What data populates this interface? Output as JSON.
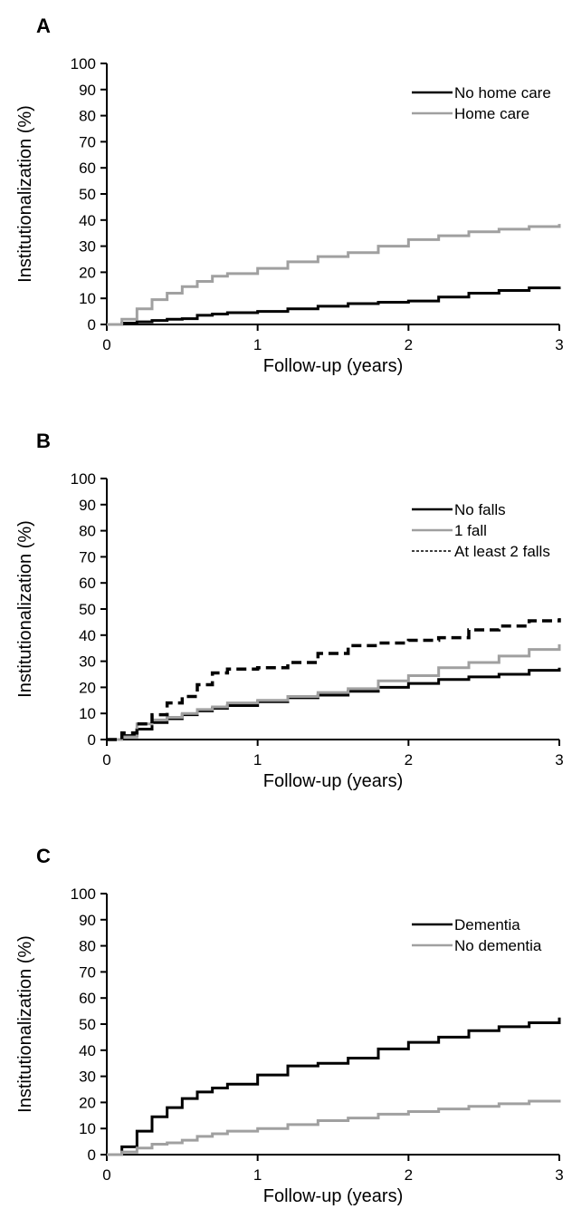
{
  "chart_data": [
    {
      "type": "line",
      "panel_label": "A",
      "xlabel": "Follow-up (years)",
      "ylabel": "Institutionalization (%)",
      "xlim": [
        0,
        3
      ],
      "ylim": [
        0,
        100
      ],
      "x_ticks": [
        0,
        1,
        2,
        3
      ],
      "y_ticks": [
        0,
        10,
        20,
        30,
        40,
        50,
        60,
        70,
        80,
        90,
        100
      ],
      "legend_position": "top-right",
      "series": [
        {
          "name": "No home care",
          "color": "#000000",
          "dash": "solid",
          "x": [
            0,
            0.1,
            0.2,
            0.3,
            0.4,
            0.5,
            0.6,
            0.7,
            0.8,
            1.0,
            1.2,
            1.4,
            1.6,
            1.8,
            2.0,
            2.2,
            2.4,
            2.6,
            2.8,
            3.0
          ],
          "y": [
            0,
            0.5,
            1,
            1.5,
            2,
            2.2,
            3.5,
            4,
            4.5,
            5,
            6,
            7,
            8,
            8.5,
            9,
            10.5,
            12,
            13,
            14,
            14.5
          ]
        },
        {
          "name": "Home care",
          "color": "#a0a0a0",
          "dash": "solid",
          "x": [
            0,
            0.1,
            0.2,
            0.3,
            0.4,
            0.5,
            0.6,
            0.7,
            0.8,
            1.0,
            1.2,
            1.4,
            1.6,
            1.8,
            2.0,
            2.2,
            2.4,
            2.6,
            2.8,
            3.0
          ],
          "y": [
            0,
            2,
            6,
            9.5,
            12,
            14.5,
            16.5,
            18.5,
            19.5,
            21.5,
            24,
            26,
            27.5,
            30,
            32.5,
            34,
            35.5,
            36.5,
            37.5,
            38.5
          ]
        }
      ]
    },
    {
      "type": "line",
      "panel_label": "B",
      "xlabel": "Follow-up (years)",
      "ylabel": "Institutionalization (%)",
      "xlim": [
        0,
        3
      ],
      "ylim": [
        0,
        100
      ],
      "x_ticks": [
        0,
        1,
        2,
        3
      ],
      "y_ticks": [
        0,
        10,
        20,
        30,
        40,
        50,
        60,
        70,
        80,
        90,
        100
      ],
      "legend_position": "top-right",
      "series": [
        {
          "name": "No falls",
          "color": "#000000",
          "dash": "solid",
          "x": [
            0,
            0.1,
            0.2,
            0.3,
            0.4,
            0.5,
            0.6,
            0.7,
            0.8,
            1.0,
            1.2,
            1.4,
            1.6,
            1.8,
            2.0,
            2.2,
            2.4,
            2.6,
            2.8,
            3.0
          ],
          "y": [
            0,
            1.5,
            4,
            6.5,
            8,
            9.5,
            11,
            12,
            13,
            14.5,
            16,
            17,
            18.5,
            20,
            21.5,
            23,
            24,
            25,
            26.5,
            27.5
          ]
        },
        {
          "name": "1 fall",
          "color": "#a0a0a0",
          "dash": "solid",
          "x": [
            0,
            0.1,
            0.2,
            0.3,
            0.4,
            0.5,
            0.6,
            0.7,
            0.8,
            1.0,
            1.2,
            1.4,
            1.6,
            1.8,
            2.0,
            2.2,
            2.4,
            2.6,
            2.8,
            3.0
          ],
          "y": [
            0,
            1,
            6,
            7.5,
            8.5,
            10,
            11.5,
            12.5,
            14,
            15,
            16.5,
            18,
            19.5,
            22.5,
            24.5,
            27.5,
            29.5,
            32,
            34.5,
            36.5
          ]
        },
        {
          "name": "At least 2 falls",
          "color": "#000000",
          "dash": "dashed",
          "x": [
            0,
            0.1,
            0.2,
            0.3,
            0.4,
            0.5,
            0.6,
            0.7,
            0.8,
            1.0,
            1.2,
            1.4,
            1.6,
            1.8,
            2.0,
            2.2,
            2.4,
            2.6,
            2.8,
            3.0
          ],
          "y": [
            0,
            2.5,
            6,
            9.5,
            14,
            16.5,
            21,
            25.5,
            27,
            27.5,
            29.5,
            33,
            36,
            37,
            38,
            39,
            42,
            43.5,
            45.5,
            46.5
          ]
        }
      ]
    },
    {
      "type": "line",
      "panel_label": "C",
      "xlabel": "Follow-up (years)",
      "ylabel": "Institutionalization (%)",
      "xlim": [
        0,
        3
      ],
      "ylim": [
        0,
        100
      ],
      "x_ticks": [
        0,
        1,
        2,
        3
      ],
      "y_ticks": [
        0,
        10,
        20,
        30,
        40,
        50,
        60,
        70,
        80,
        90,
        100
      ],
      "legend_position": "top-right",
      "series": [
        {
          "name": "Dementia",
          "color": "#000000",
          "dash": "solid",
          "x": [
            0,
            0.1,
            0.2,
            0.3,
            0.4,
            0.5,
            0.6,
            0.7,
            0.8,
            1.0,
            1.2,
            1.4,
            1.6,
            1.8,
            2.0,
            2.2,
            2.4,
            2.6,
            2.8,
            3.0
          ],
          "y": [
            0,
            3,
            9,
            14.5,
            18,
            21.5,
            24,
            25.5,
            27,
            30.5,
            34,
            35,
            37,
            40.5,
            43,
            45,
            47.5,
            49,
            50.5,
            52.5
          ]
        },
        {
          "name": "No dementia",
          "color": "#a0a0a0",
          "dash": "solid",
          "x": [
            0,
            0.1,
            0.2,
            0.3,
            0.4,
            0.5,
            0.6,
            0.7,
            0.8,
            1.0,
            1.2,
            1.4,
            1.6,
            1.8,
            2.0,
            2.2,
            2.4,
            2.6,
            2.8,
            3.0
          ],
          "y": [
            0,
            1,
            2.5,
            4,
            4.5,
            5.5,
            7,
            8,
            9,
            10,
            11.5,
            13,
            14,
            15.5,
            16.5,
            17.5,
            18.5,
            19.5,
            20.5,
            21
          ]
        }
      ]
    }
  ]
}
